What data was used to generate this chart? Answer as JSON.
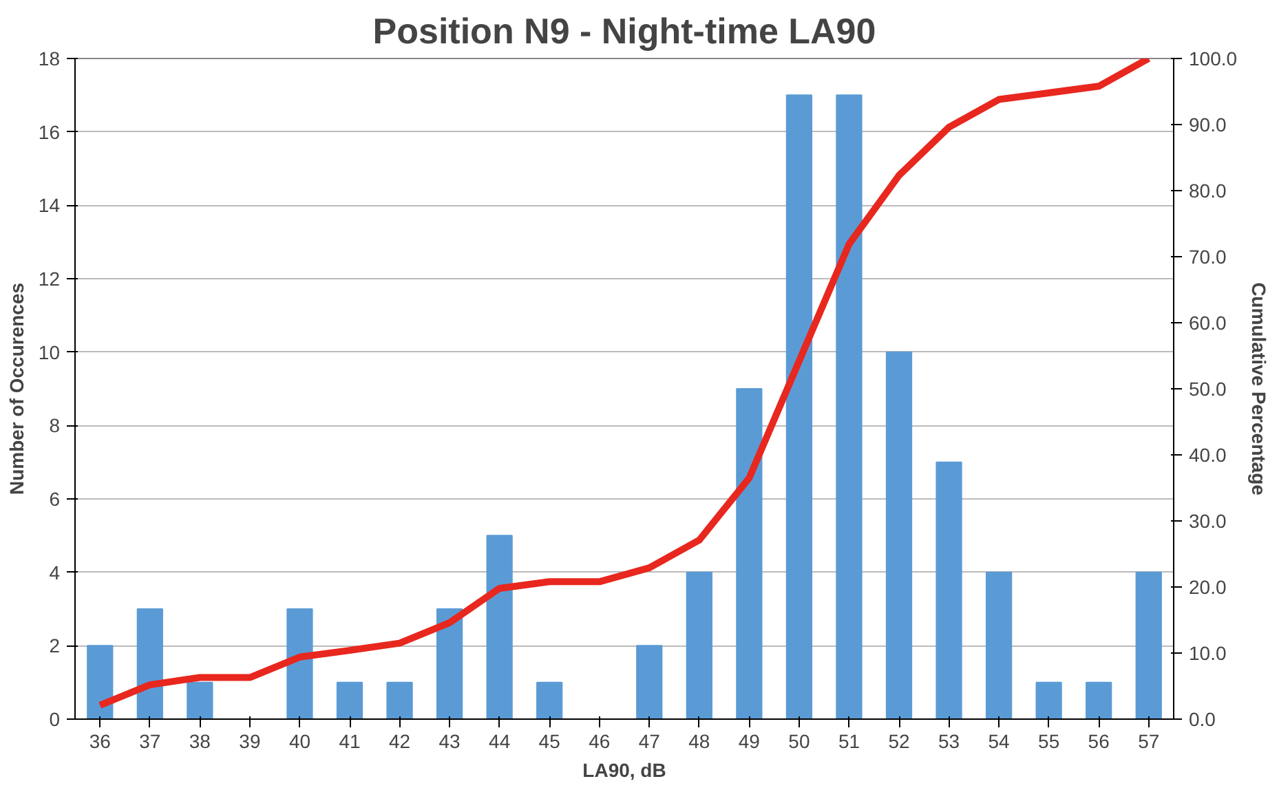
{
  "chart_data": {
    "type": "bar",
    "title": "Position N9 - Night-time LA90",
    "xlabel": "LA90, dB",
    "ylabel": "Number of Occurences",
    "y2label": "Cumulative Percentage",
    "categories": [
      "36",
      "37",
      "38",
      "39",
      "40",
      "41",
      "42",
      "43",
      "44",
      "45",
      "46",
      "47",
      "48",
      "49",
      "50",
      "51",
      "52",
      "53",
      "54",
      "55",
      "56",
      "57"
    ],
    "series": [
      {
        "name": null,
        "color": "#5b9bd5",
        "values": [
          2,
          3,
          1,
          0,
          3,
          1,
          1,
          3,
          5,
          1,
          0,
          2,
          4,
          9,
          17,
          17,
          10,
          7,
          4,
          1,
          1,
          4
        ]
      },
      {
        "name": null,
        "type": "line",
        "axis": "y2",
        "color": "#e8271e",
        "values": [
          2.1,
          5.2,
          6.3,
          6.3,
          9.4,
          10.4,
          11.5,
          14.6,
          19.8,
          20.8,
          20.8,
          22.9,
          27.1,
          36.5,
          54.2,
          71.9,
          82.3,
          89.6,
          93.8,
          94.8,
          95.8,
          100.0
        ]
      }
    ],
    "ylim": [
      0,
      18
    ],
    "yticks": [
      0,
      2,
      4,
      6,
      8,
      10,
      12,
      14,
      16,
      18
    ],
    "y2lim": [
      0,
      100
    ],
    "y2ticks": [
      {
        "value": 0,
        "label": "0.0"
      },
      {
        "value": 10,
        "label": "10.0"
      },
      {
        "value": 20,
        "label": "20.0"
      },
      {
        "value": 30,
        "label": "30.0"
      },
      {
        "value": 40,
        "label": "40.0"
      },
      {
        "value": 50,
        "label": "50.0"
      },
      {
        "value": 60,
        "label": "60.0"
      },
      {
        "value": 70,
        "label": "70.0"
      },
      {
        "value": 80,
        "label": "80.0"
      },
      {
        "value": 90,
        "label": "90.0"
      },
      {
        "value": 100,
        "label": "100.0"
      }
    ],
    "grid": "y",
    "line_style": "solid"
  }
}
